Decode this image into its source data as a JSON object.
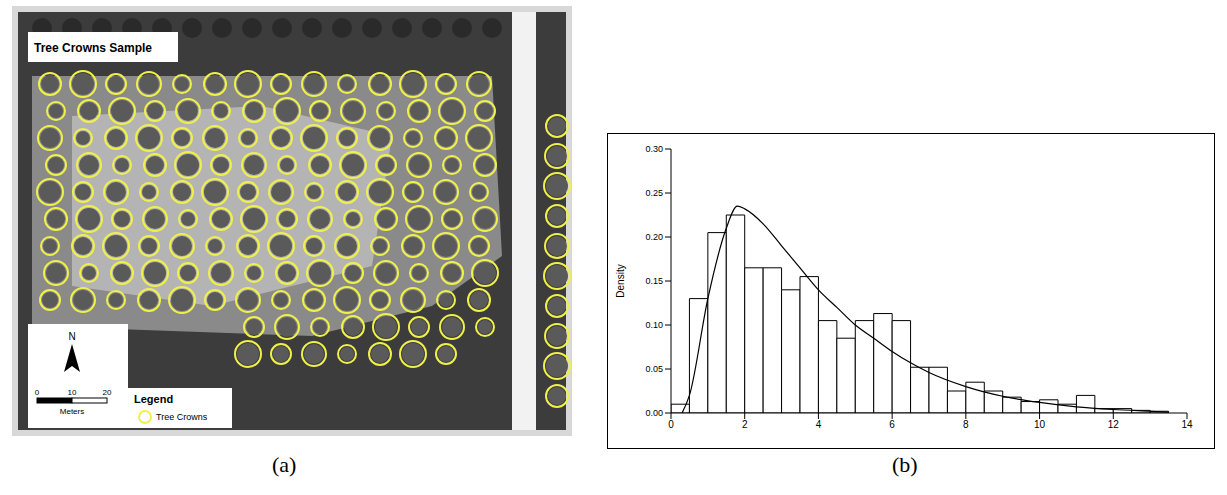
{
  "figure_labels": [
    "(a)",
    "(b)"
  ],
  "panel_a": {
    "title": "Tree Crowns Sample",
    "north": "N",
    "scale_bar": {
      "ticks": [
        0,
        10,
        20
      ],
      "unit": "Meters"
    },
    "legend": {
      "title": "Legend",
      "entry": "Tree Crowns"
    }
  },
  "chart_data": {
    "type": "histogram",
    "y_label": "Density",
    "bins": [
      0,
      0.5,
      1,
      1.5,
      2,
      2.5,
      3,
      3.5,
      4,
      4.5,
      5,
      5.5,
      6,
      6.5,
      7,
      7.5,
      8,
      8.5,
      9,
      9.5,
      10,
      10.5,
      11,
      11.5,
      12,
      12.5,
      13,
      13.5
    ],
    "values": [
      0.01,
      0.13,
      0.205,
      0.225,
      0.165,
      0.165,
      0.14,
      0.155,
      0.105,
      0.085,
      0.105,
      0.113,
      0.105,
      0.052,
      0.052,
      0.025,
      0.035,
      0.025,
      0.018,
      0.013,
      0.015,
      0.01,
      0.02,
      0.005,
      0.005,
      0.003,
      0.002
    ],
    "color": "#000000",
    "density_curve": {
      "type": "line",
      "color": "#000000",
      "line_style": "solid",
      "x": [
        0.3,
        0.5,
        1,
        1.5,
        1.8,
        2,
        2.5,
        3,
        3.5,
        4,
        4.5,
        5,
        5.5,
        6,
        6.5,
        7,
        8,
        9,
        10,
        11,
        12,
        13,
        13.5
      ],
      "values": [
        0,
        0.02,
        0.13,
        0.21,
        0.235,
        0.232,
        0.215,
        0.19,
        0.165,
        0.14,
        0.12,
        0.1,
        0.085,
        0.07,
        0.057,
        0.046,
        0.03,
        0.019,
        0.012,
        0.007,
        0.004,
        0.002,
        0.001
      ]
    },
    "xlim": [
      0,
      14
    ],
    "ylim": [
      0,
      0.3
    ],
    "xticks": [
      0,
      2,
      4,
      6,
      8,
      10,
      12,
      14
    ],
    "yticks": [
      {
        "value": 0,
        "label": "0.00"
      },
      {
        "value": 0.05,
        "label": "0.05"
      },
      {
        "value": 0.1,
        "label": "0.10"
      },
      {
        "value": 0.15,
        "label": "0.15"
      },
      {
        "value": 0.2,
        "label": "0.20"
      },
      {
        "value": 0.25,
        "label": "0.25"
      },
      {
        "value": 0.3,
        "label": "0.30"
      }
    ],
    "grid": false
  }
}
